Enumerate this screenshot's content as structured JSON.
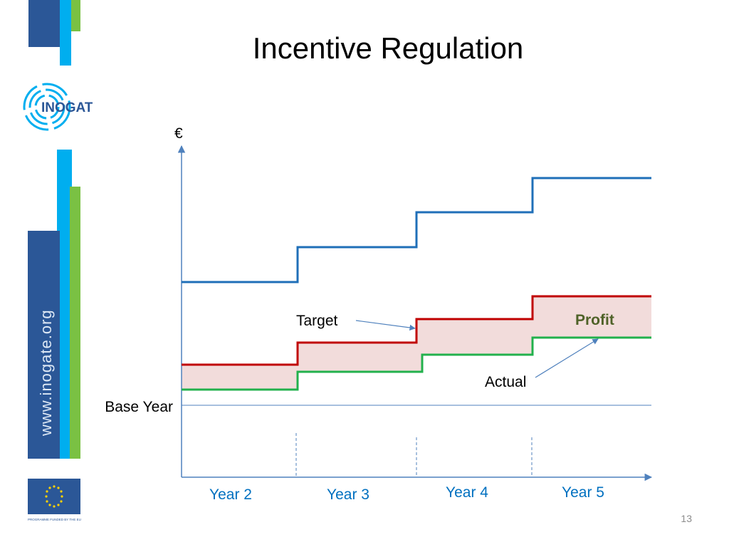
{
  "slide": {
    "title": "Incentive Regulation",
    "page_number": "13"
  },
  "sidebar": {
    "logo_text": "INOGATE",
    "vertical_url": "www.inogate.org",
    "eu_caption": "PROGRAMME FUNDED BY THE EU"
  },
  "diagram": {
    "y_axis_label": "€",
    "base_year_label": "Base Year",
    "target_label": "Target",
    "actual_label": "Actual",
    "profit_label": "Profit",
    "x_labels": [
      "Year 2",
      "Year 3",
      "Year 4",
      "Year 5"
    ]
  },
  "colors": {
    "blue_line": "#1f6fb8",
    "target_line": "#c00000",
    "actual_line": "#22b14c",
    "profit_fill": "#f2dcdb",
    "year_label": "#0070c0",
    "profit_text": "#4f6228",
    "brand_dark_blue": "#2b5797",
    "brand_light_blue": "#00aeef",
    "brand_green": "#7ac143"
  }
}
